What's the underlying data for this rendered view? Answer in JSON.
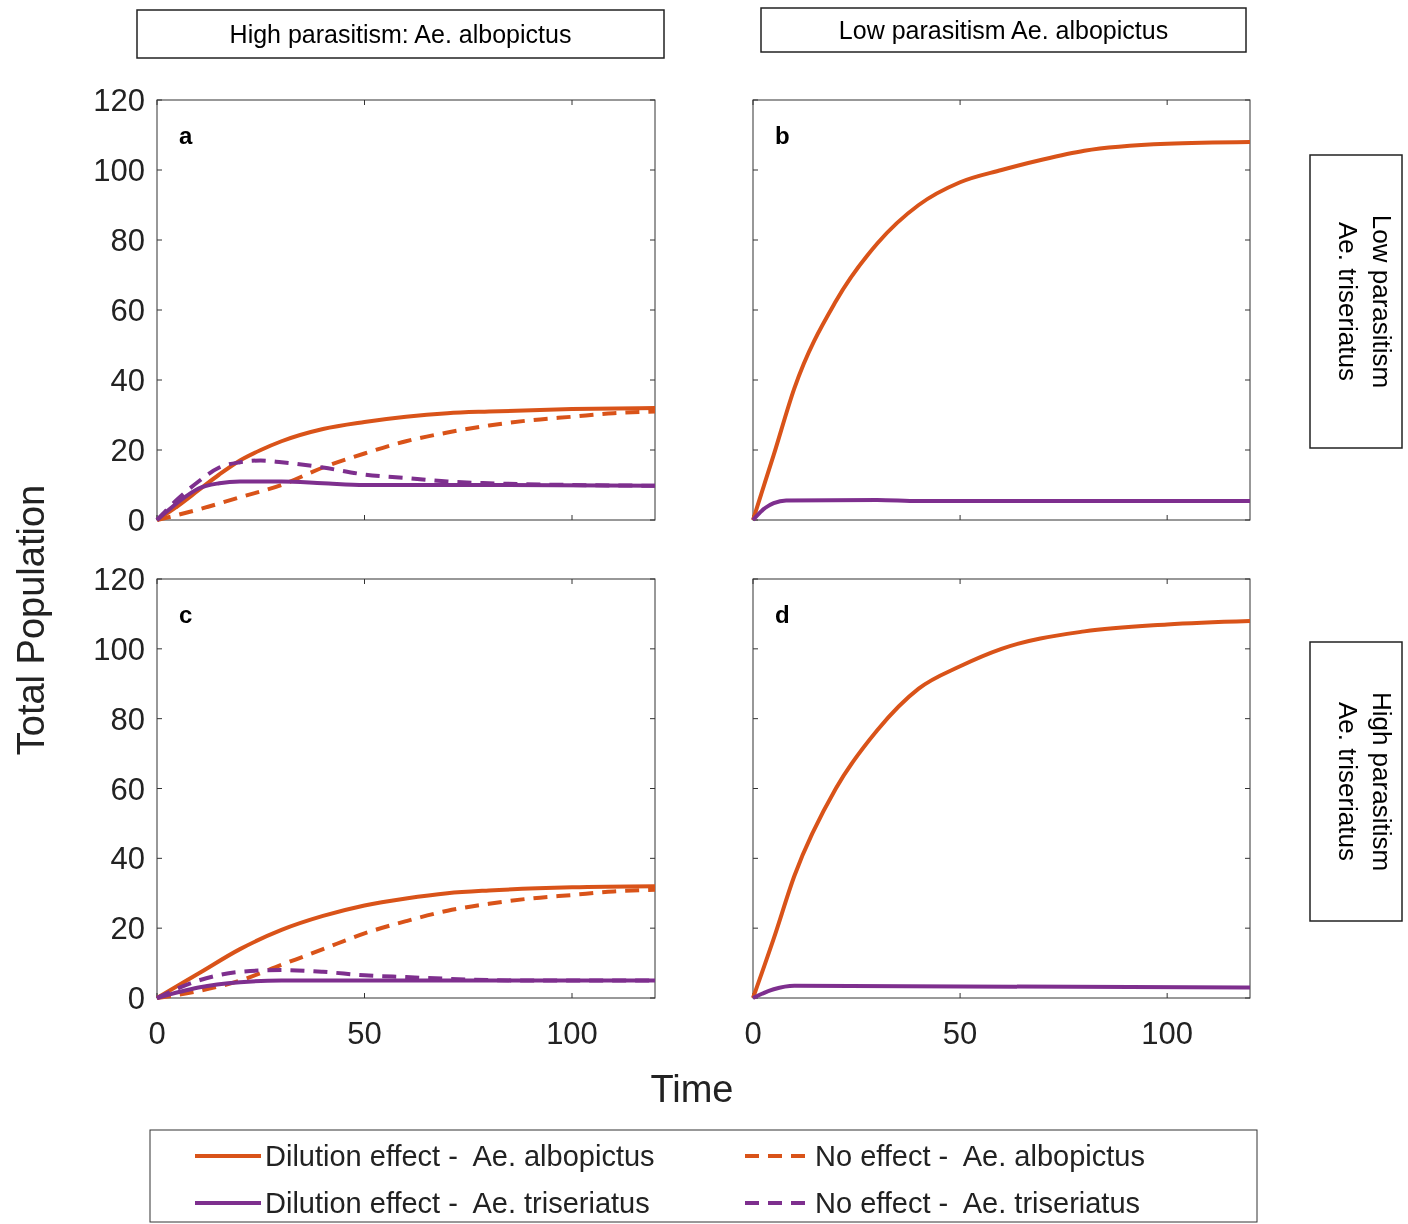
{
  "chart_data": [
    {
      "type": "line",
      "title": "High parasitism: Ae. albopictus",
      "ylabel": "Total Population",
      "annotations": [
        "a"
      ],
      "xlim": [
        0,
        120
      ],
      "ylim": [
        0,
        120
      ],
      "xticks": [
        0,
        50,
        100
      ],
      "yticks": [
        0,
        20,
        40,
        60,
        80,
        100,
        120
      ],
      "tick_labels": "y",
      "grid": false,
      "legend": "bottom",
      "series": [
        {
          "name": "Dilution effect -  Ae. albopictus",
          "color": "#d95319",
          "line_style": "solid",
          "x": [
            0,
            5,
            10,
            15,
            20,
            25,
            30,
            40,
            50,
            60,
            70,
            80,
            100,
            120
          ],
          "values": [
            0,
            4,
            8.5,
            13,
            17,
            20,
            22.5,
            26,
            28,
            29.5,
            30.5,
            31,
            31.7,
            32
          ]
        },
        {
          "name": "No effect -  Ae. albopictus",
          "color": "#d95319",
          "line_style": "dashed",
          "x": [
            0,
            10,
            20,
            30,
            40,
            50,
            60,
            70,
            80,
            90,
            100,
            110,
            120
          ],
          "values": [
            0,
            3,
            6.5,
            10,
            15,
            19,
            22.5,
            25,
            27,
            28.5,
            29.5,
            30.5,
            31
          ]
        },
        {
          "name": "Dilution effect -  Ae. triseriatus",
          "color": "#7e2f8e",
          "line_style": "solid",
          "x": [
            0,
            5,
            10,
            15,
            20,
            30,
            40,
            50,
            70,
            120
          ],
          "values": [
            0,
            5,
            9,
            10.5,
            11,
            11,
            10.5,
            10,
            10,
            9.8
          ]
        },
        {
          "name": "No effect -  Ae. triseriatus",
          "color": "#7e2f8e",
          "line_style": "dashed",
          "x": [
            0,
            5,
            10,
            15,
            20,
            25,
            30,
            40,
            50,
            60,
            70,
            80,
            100,
            120
          ],
          "values": [
            0,
            6,
            11,
            15,
            16.5,
            17,
            16.5,
            15,
            13,
            12,
            11,
            10.5,
            10,
            9.8
          ]
        }
      ]
    },
    {
      "type": "line",
      "title": "Low parasitism  Ae. albopictus",
      "annotations": [
        "b",
        "Low parasitism",
        "Ae.  triseriatus"
      ],
      "xlim": [
        0,
        120
      ],
      "ylim": [
        0,
        120
      ],
      "xticks": [
        0,
        50,
        100
      ],
      "yticks": [
        0,
        20,
        40,
        60,
        80,
        100,
        120
      ],
      "tick_labels": false,
      "grid": false,
      "series": [
        {
          "color": "#d95319",
          "line_style": "solid",
          "x": [
            0,
            5,
            10,
            20,
            30,
            40,
            50,
            60,
            70,
            80,
            100,
            120
          ],
          "values": [
            0,
            18.6,
            37.7,
            62.5,
            79,
            90,
            96.5,
            100,
            103,
            105.5,
            107.5,
            108
          ]
        },
        {
          "color": "#7e2f8e",
          "line_style": "solid",
          "x": [
            0,
            3,
            5,
            8,
            30,
            40,
            120
          ],
          "values": [
            0,
            3.5,
            4.8,
            5.6,
            5.7,
            5.4,
            5.4
          ]
        }
      ]
    },
    {
      "type": "line",
      "xlabel": "Time",
      "annotations": [
        "c"
      ],
      "xlim": [
        0,
        120
      ],
      "ylim": [
        0,
        120
      ],
      "xticks": [
        0,
        50,
        100
      ],
      "yticks": [
        0,
        20,
        40,
        60,
        80,
        100,
        120
      ],
      "grid": false,
      "series": [
        {
          "color": "#d95319",
          "line_style": "solid",
          "x": [
            0,
            10,
            20,
            30,
            40,
            50,
            60,
            70,
            80,
            100,
            120
          ],
          "values": [
            0,
            7,
            14,
            19.5,
            23.5,
            26.5,
            28.5,
            30,
            30.8,
            31.7,
            32
          ]
        },
        {
          "color": "#d95319",
          "line_style": "dashed",
          "x": [
            0,
            10,
            20,
            30,
            40,
            50,
            60,
            70,
            80,
            90,
            100,
            110,
            120
          ],
          "values": [
            0,
            2,
            5,
            9.5,
            14,
            18.5,
            22,
            25,
            27,
            28.5,
            29.5,
            30.5,
            31
          ]
        },
        {
          "color": "#7e2f8e",
          "line_style": "solid",
          "x": [
            0,
            10,
            20,
            30,
            120
          ],
          "values": [
            0,
            3,
            4.5,
            5,
            5
          ]
        },
        {
          "color": "#7e2f8e",
          "line_style": "dashed",
          "x": [
            0,
            10,
            20,
            30,
            40,
            50,
            60,
            70,
            90,
            120
          ],
          "values": [
            0,
            5,
            7.5,
            8,
            7.5,
            6.5,
            6,
            5.5,
            5,
            5
          ]
        }
      ]
    },
    {
      "type": "line",
      "annotations": [
        "d",
        "High parasitism",
        "Ae. triseriatus"
      ],
      "xlim": [
        0,
        120
      ],
      "ylim": [
        0,
        120
      ],
      "xticks": [
        0,
        50,
        100
      ],
      "yticks": [
        0,
        20,
        40,
        60,
        80,
        100,
        120
      ],
      "tick_labels": "x",
      "grid": false,
      "series": [
        {
          "color": "#d95319",
          "line_style": "solid",
          "x": [
            0,
            5,
            10,
            20,
            30,
            40,
            50,
            60,
            80,
            100,
            120
          ],
          "values": [
            0,
            17,
            35,
            60,
            76.7,
            88.6,
            95,
            100,
            105,
            107,
            108
          ]
        },
        {
          "color": "#7e2f8e",
          "line_style": "solid",
          "x": [
            0,
            5,
            10,
            120
          ],
          "values": [
            0,
            2.5,
            3.5,
            3
          ]
        }
      ]
    }
  ]
}
